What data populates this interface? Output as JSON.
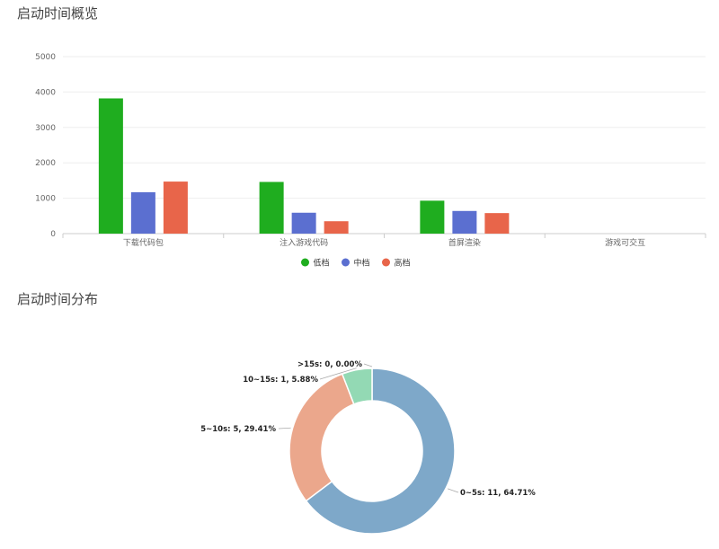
{
  "titles": {
    "overview": "启动时间概览",
    "distribution": "启动时间分布"
  },
  "chart_data": [
    {
      "type": "bar",
      "categories": [
        "下载代码包",
        "注入游戏代码",
        "首屏渲染",
        "游戏可交互"
      ],
      "series": [
        {
          "name": "低档",
          "color": "#1fad1f",
          "values": [
            3820,
            1460,
            930,
            0
          ]
        },
        {
          "name": "中档",
          "color": "#5b6fd0",
          "values": [
            1170,
            590,
            640,
            0
          ]
        },
        {
          "name": "高档",
          "color": "#e8654a",
          "values": [
            1470,
            350,
            580,
            0
          ]
        }
      ],
      "yticks": [
        "0",
        "1000",
        "2000",
        "3000",
        "4000",
        "5000"
      ],
      "ylim": [
        0,
        5000
      ],
      "grid": true,
      "legend": "bottom-center"
    },
    {
      "type": "pie",
      "donut": true,
      "slices": [
        {
          "label": "0~5s: 11, 64.71%",
          "name": "0~5s",
          "value": 11,
          "percent": 64.71,
          "color": "#7ea8c9"
        },
        {
          "label": "5~10s: 5, 29.41%",
          "name": "5~10s",
          "value": 5,
          "percent": 29.41,
          "color": "#eba78c"
        },
        {
          "label": "10~15s: 1, 5.88%",
          "name": "10~15s",
          "value": 1,
          "percent": 5.88,
          "color": "#93d9b4"
        },
        {
          "label": ">15s: 0, 0.00%",
          "name": ">15s",
          "value": 0,
          "percent": 0.0,
          "color": "#c7c9e8"
        }
      ]
    }
  ]
}
